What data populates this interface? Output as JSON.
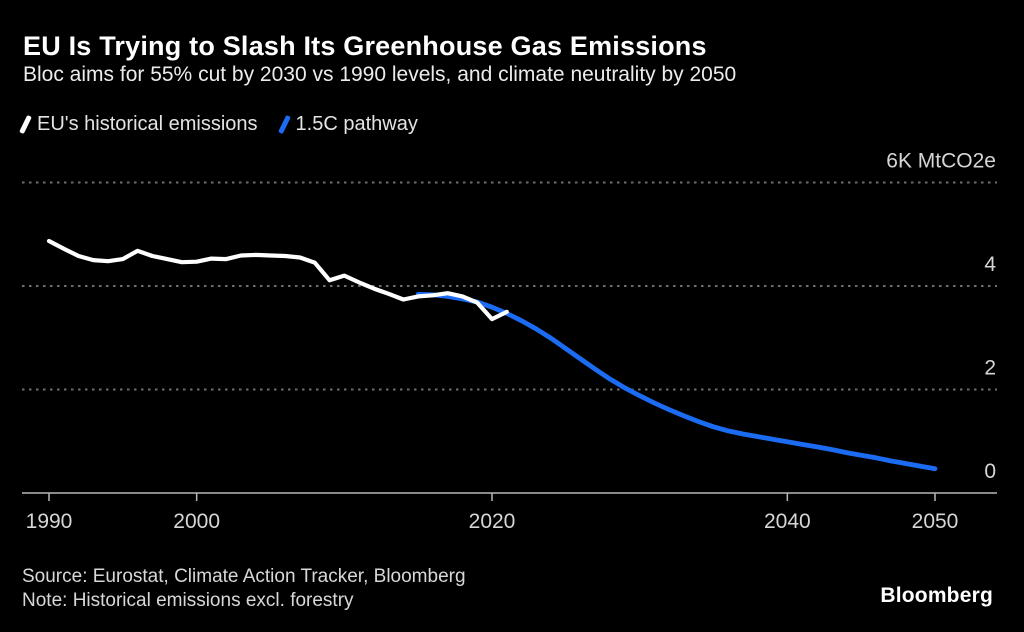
{
  "header": {
    "title": "EU Is Trying to Slash Its Greenhouse Gas Emissions",
    "subtitle": "Bloc aims for 55% cut by 2030 vs 1990 levels, and climate neutrality by 2050"
  },
  "legend": {
    "items": [
      {
        "label": "EU's historical emissions",
        "color": "#ffffff"
      },
      {
        "label": "1.5C pathway",
        "color": "#1b6cf2"
      }
    ]
  },
  "footer": {
    "source": "Source: Eurostat, Climate Action Tracker, Bloomberg",
    "note": "Note: Historical emissions excl. forestry",
    "logo": "Bloomberg"
  },
  "colors": {
    "background": "#000000",
    "historical_line": "#ffffff",
    "pathway_line": "#1b6cf2",
    "gridline": "#6e6e6e",
    "axis": "#b8b8b8",
    "label_text": "#d6d6d6"
  },
  "chart_data": {
    "type": "line",
    "title": "EU Is Trying to Slash Its Greenhouse Gas Emissions",
    "subtitle": "Bloc aims for 55% cut by 2030 vs 1990 levels, and climate neutrality by 2050",
    "ylabel": "MtCO2e",
    "xlabel": "",
    "ylim": [
      0,
      6000
    ],
    "xlim": [
      1990,
      2050
    ],
    "grid": "horizontal-dotted",
    "legend_position": "top-left",
    "y_ticks": [
      {
        "value": 6000,
        "label": "6K MtCO2e"
      },
      {
        "value": 4000,
        "label": "4"
      },
      {
        "value": 2000,
        "label": "2"
      },
      {
        "value": 0,
        "label": "0"
      }
    ],
    "x_ticks": [
      {
        "value": 1990,
        "label": "1990"
      },
      {
        "value": 2000,
        "label": "2000"
      },
      {
        "value": 2020,
        "label": "2020"
      },
      {
        "value": 2040,
        "label": "2040"
      },
      {
        "value": 2050,
        "label": "2050"
      }
    ],
    "series": [
      {
        "id": "historical",
        "name": "EU's historical emissions",
        "color": "#ffffff",
        "points": [
          [
            1990,
            4870
          ],
          [
            1991,
            4720
          ],
          [
            1992,
            4580
          ],
          [
            1993,
            4500
          ],
          [
            1994,
            4480
          ],
          [
            1995,
            4520
          ],
          [
            1996,
            4680
          ],
          [
            1997,
            4580
          ],
          [
            1998,
            4520
          ],
          [
            1999,
            4460
          ],
          [
            2000,
            4470
          ],
          [
            2001,
            4530
          ],
          [
            2002,
            4520
          ],
          [
            2003,
            4590
          ],
          [
            2004,
            4600
          ],
          [
            2005,
            4590
          ],
          [
            2006,
            4580
          ],
          [
            2007,
            4550
          ],
          [
            2008,
            4450
          ],
          [
            2009,
            4110
          ],
          [
            2010,
            4200
          ],
          [
            2011,
            4070
          ],
          [
            2012,
            3950
          ],
          [
            2013,
            3850
          ],
          [
            2014,
            3740
          ],
          [
            2015,
            3800
          ],
          [
            2016,
            3820
          ],
          [
            2017,
            3860
          ],
          [
            2018,
            3800
          ],
          [
            2019,
            3680
          ],
          [
            2020,
            3360
          ],
          [
            2021,
            3500
          ]
        ]
      },
      {
        "id": "pathway",
        "name": "1.5C pathway",
        "color": "#1b6cf2",
        "points": [
          [
            2015,
            3840
          ],
          [
            2016,
            3830
          ],
          [
            2017,
            3800
          ],
          [
            2018,
            3750
          ],
          [
            2019,
            3690
          ],
          [
            2020,
            3590
          ],
          [
            2021,
            3470
          ],
          [
            2022,
            3330
          ],
          [
            2023,
            3170
          ],
          [
            2024,
            2990
          ],
          [
            2025,
            2790
          ],
          [
            2026,
            2590
          ],
          [
            2027,
            2390
          ],
          [
            2028,
            2200
          ],
          [
            2029,
            2030
          ],
          [
            2030,
            1880
          ],
          [
            2031,
            1740
          ],
          [
            2032,
            1610
          ],
          [
            2033,
            1490
          ],
          [
            2034,
            1380
          ],
          [
            2035,
            1280
          ],
          [
            2036,
            1200
          ],
          [
            2037,
            1140
          ],
          [
            2038,
            1090
          ],
          [
            2039,
            1040
          ],
          [
            2040,
            990
          ],
          [
            2041,
            940
          ],
          [
            2042,
            890
          ],
          [
            2043,
            840
          ],
          [
            2044,
            780
          ],
          [
            2045,
            730
          ],
          [
            2046,
            680
          ],
          [
            2047,
            620
          ],
          [
            2048,
            570
          ],
          [
            2049,
            520
          ],
          [
            2050,
            470
          ]
        ]
      }
    ]
  }
}
